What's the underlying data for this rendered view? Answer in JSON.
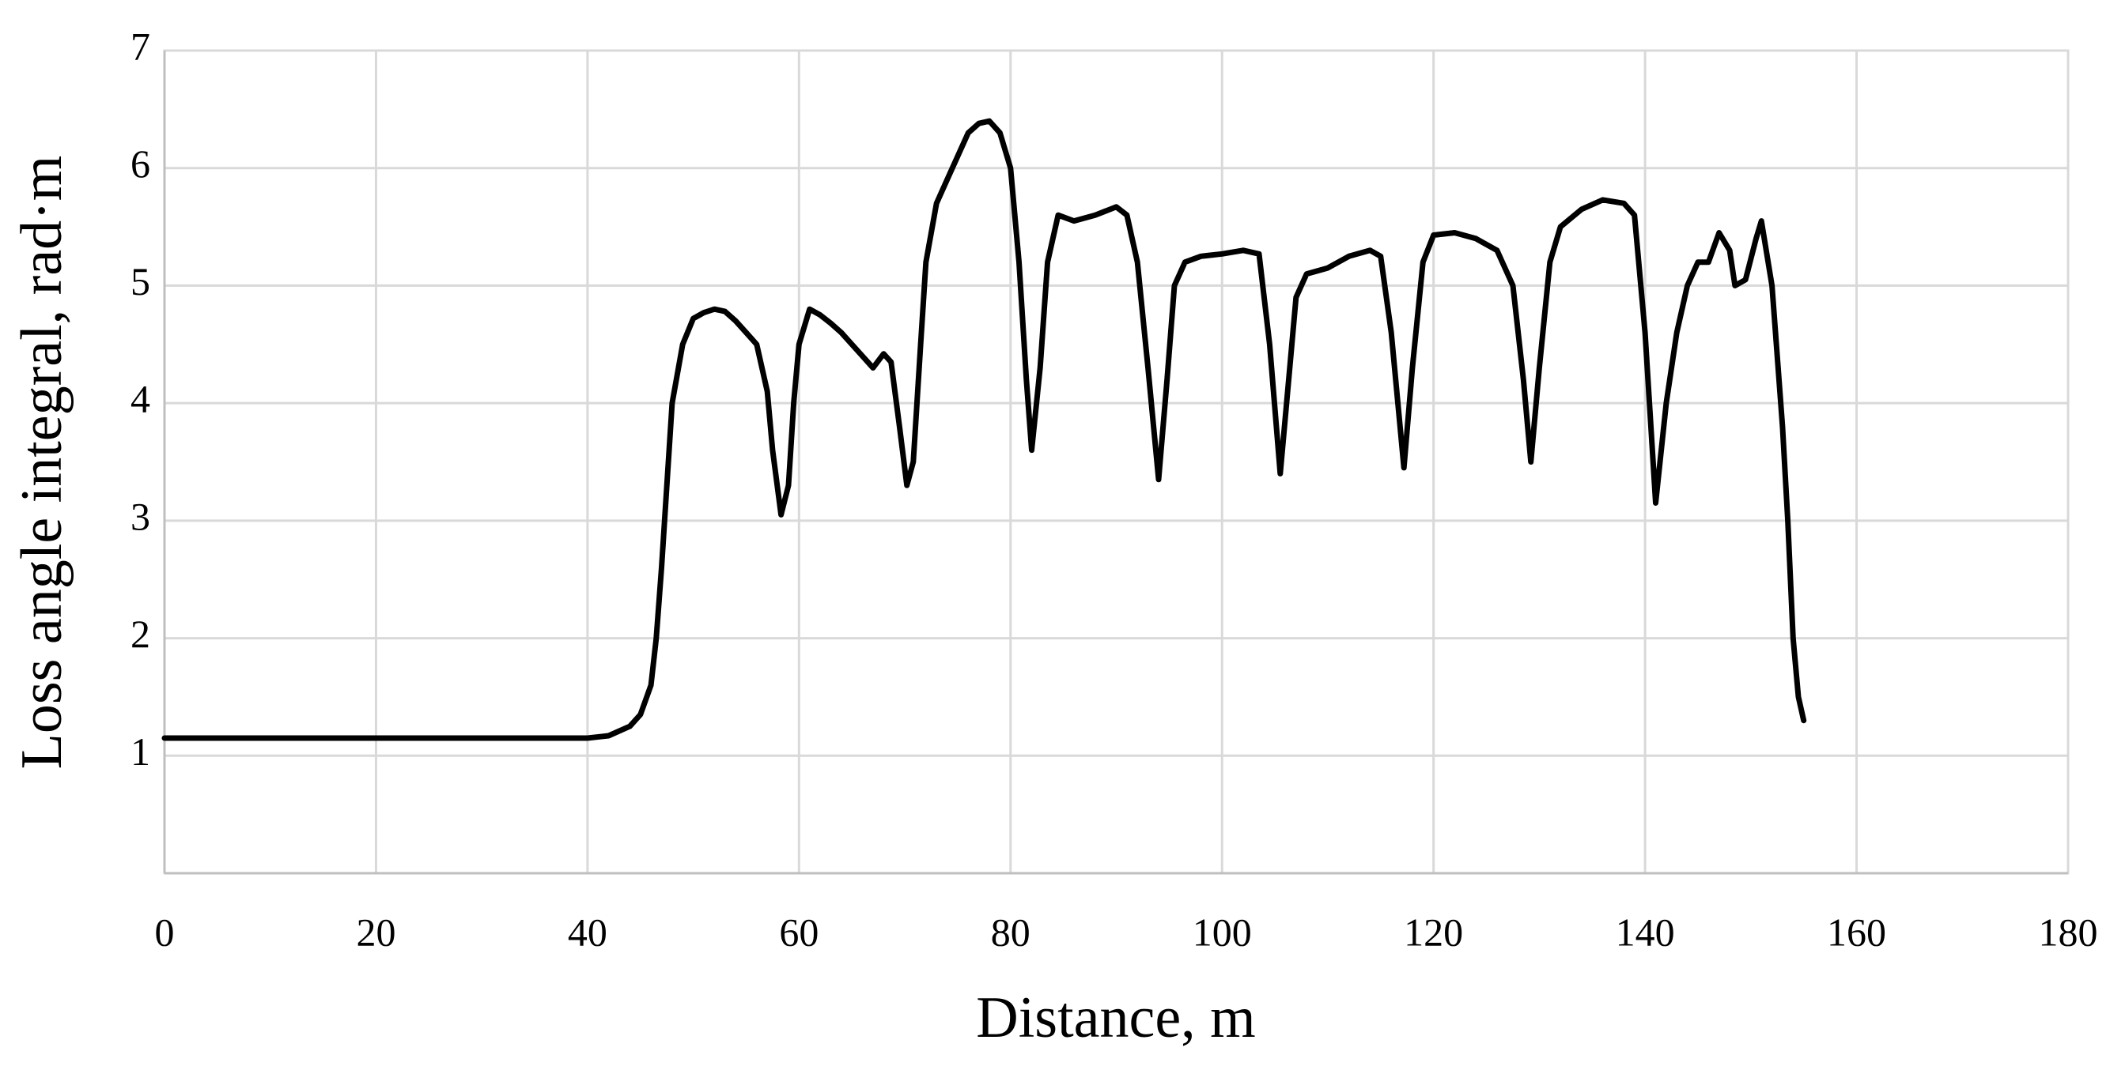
{
  "chart_data": {
    "type": "line",
    "x_label": "Distance, m",
    "y_label": "Loss angle integral, rad·m",
    "x": [
      0,
      10,
      20,
      30,
      40,
      42,
      44,
      45,
      46,
      46.5,
      47,
      47.5,
      48,
      49,
      50,
      51,
      52,
      53,
      54,
      55,
      56,
      57,
      57.5,
      58.3,
      59,
      59.5,
      60,
      61,
      62,
      63,
      64,
      65,
      66,
      67,
      68,
      68.7,
      69.5,
      70.2,
      70.8,
      71.5,
      72,
      73,
      74,
      75,
      76,
      77,
      78,
      79,
      80,
      80.8,
      81.5,
      82,
      82.8,
      83.5,
      84.5,
      86,
      88,
      90,
      91,
      92,
      93,
      94,
      94.8,
      95.5,
      96.5,
      98,
      100,
      102,
      103.5,
      104.5,
      105.5,
      106.3,
      107,
      108,
      110,
      112,
      114,
      115,
      116,
      117.2,
      118,
      119,
      120,
      122,
      124,
      126,
      127.5,
      128.5,
      129.2,
      130,
      131,
      132,
      134,
      136,
      138,
      139,
      140,
      141,
      142,
      143,
      144,
      145,
      146,
      147,
      148,
      148.5,
      149.5,
      150.5,
      151,
      152,
      153,
      153.5,
      154,
      154.5,
      155
    ],
    "values": [
      1.15,
      1.15,
      1.15,
      1.15,
      1.15,
      1.17,
      1.25,
      1.35,
      1.6,
      2.0,
      2.6,
      3.3,
      4.0,
      4.5,
      4.72,
      4.77,
      4.8,
      4.78,
      4.7,
      4.6,
      4.5,
      4.1,
      3.6,
      3.05,
      3.3,
      4.0,
      4.5,
      4.8,
      4.75,
      4.68,
      4.6,
      4.5,
      4.4,
      4.3,
      4.42,
      4.35,
      3.8,
      3.3,
      3.5,
      4.5,
      5.2,
      5.7,
      5.9,
      6.1,
      6.3,
      6.38,
      6.4,
      6.3,
      6.0,
      5.2,
      4.2,
      3.6,
      4.3,
      5.2,
      5.6,
      5.55,
      5.6,
      5.67,
      5.6,
      5.2,
      4.3,
      3.35,
      4.2,
      5.0,
      5.2,
      5.25,
      5.27,
      5.3,
      5.27,
      4.5,
      3.4,
      4.2,
      4.9,
      5.1,
      5.15,
      5.25,
      5.3,
      5.25,
      4.6,
      3.45,
      4.3,
      5.2,
      5.43,
      5.45,
      5.4,
      5.3,
      5.0,
      4.2,
      3.5,
      4.3,
      5.2,
      5.5,
      5.65,
      5.73,
      5.7,
      5.6,
      4.6,
      3.15,
      4.0,
      4.6,
      5.0,
      5.2,
      5.2,
      5.45,
      5.3,
      5.0,
      5.05,
      5.4,
      5.55,
      5.0,
      3.8,
      3.0,
      2.0,
      1.5,
      1.3
    ],
    "color": "#000000",
    "xlim": [
      0,
      180
    ],
    "xticks": [
      0,
      20,
      40,
      60,
      80,
      100,
      120,
      140,
      160,
      180
    ],
    "ylim": [
      0,
      7
    ],
    "yticks": [
      1,
      2,
      3,
      4,
      5,
      6,
      7
    ],
    "grid": true
  }
}
